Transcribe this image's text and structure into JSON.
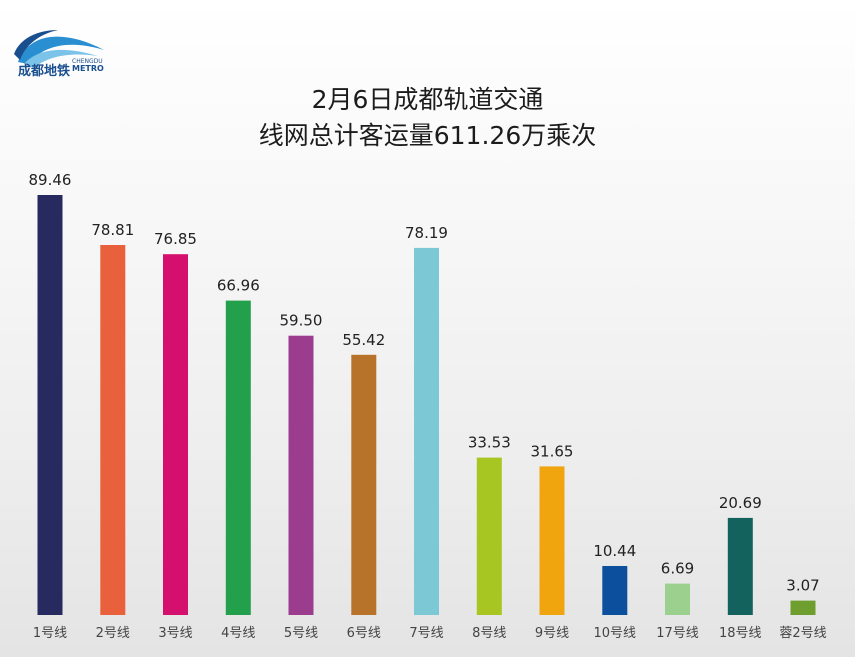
{
  "logo": {
    "text_cn": "成都地铁",
    "text_en_small": "CHENGDU",
    "text_en": "METRO",
    "icon": "wave-icon"
  },
  "title": {
    "line1": "2月6日成都轨道交通",
    "line2": "线网总计客运量611.26万乘次"
  },
  "chart_data": {
    "type": "bar",
    "categories": [
      "1号线",
      "2号线",
      "3号线",
      "4号线",
      "5号线",
      "6号线",
      "7号线",
      "8号线",
      "9号线",
      "10号线",
      "17号线",
      "18号线",
      "蓉2号线"
    ],
    "values": [
      89.46,
      78.81,
      76.85,
      66.96,
      59.5,
      55.42,
      78.19,
      33.53,
      31.65,
      10.44,
      6.69,
      20.69,
      3.07
    ],
    "value_labels": [
      "89.46",
      "78.81",
      "76.85",
      "66.96",
      "59.50",
      "55.42",
      "78.19",
      "33.53",
      "31.65",
      "10.44",
      "6.69",
      "20.69",
      "3.07"
    ],
    "colors": [
      "#262a5e",
      "#e8603c",
      "#d40f6e",
      "#22a04b",
      "#9b3c8f",
      "#b8732a",
      "#7cc8d4",
      "#a8c621",
      "#f0a50f",
      "#0c4f9c",
      "#9bd08f",
      "#14625e",
      "#6d9e2e"
    ],
    "ylim": [
      0,
      89.46
    ],
    "grid": false,
    "legend": "none"
  }
}
